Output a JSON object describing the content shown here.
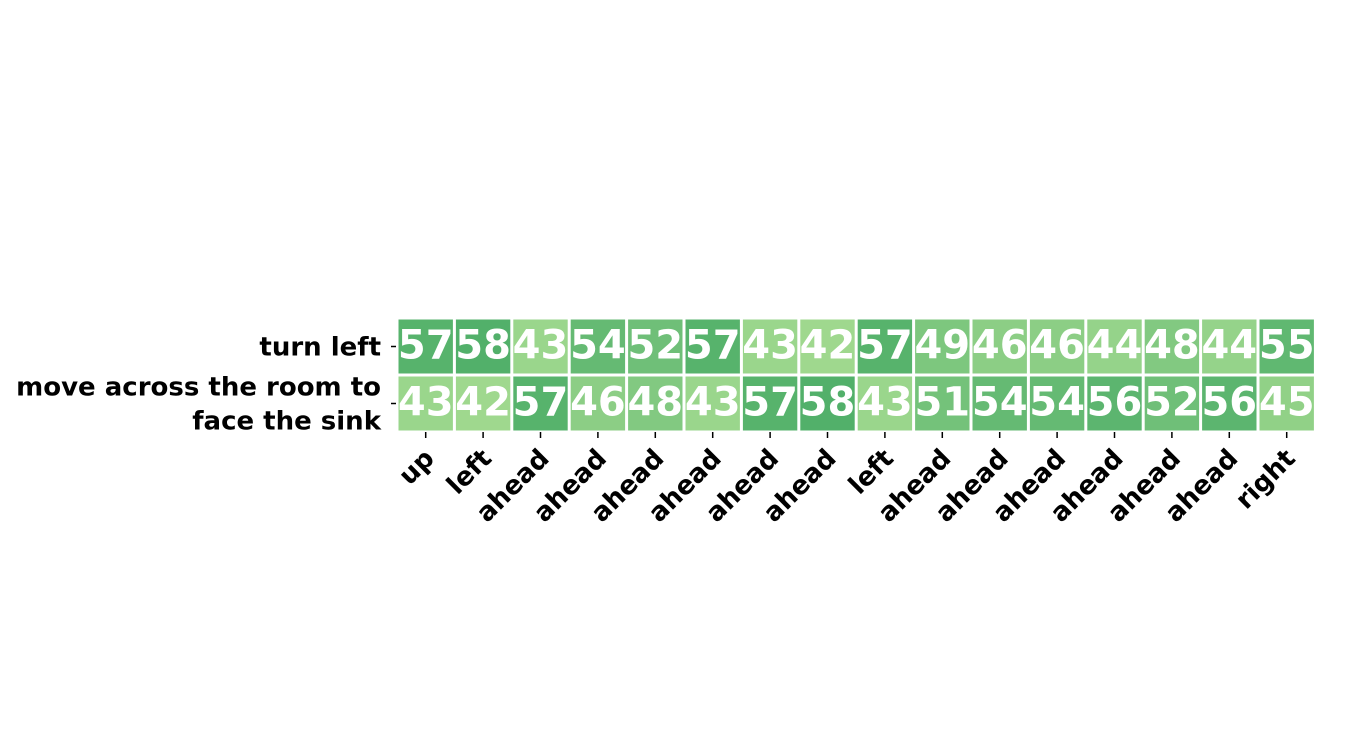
{
  "chart_data": {
    "type": "heatmap",
    "rows": [
      [
        "turn left"
      ],
      [
        "move across the room to",
        "face the sink"
      ]
    ],
    "columns": [
      "up",
      "left",
      "ahead",
      "ahead",
      "ahead",
      "ahead",
      "ahead",
      "ahead",
      "left",
      "ahead",
      "ahead",
      "ahead",
      "ahead",
      "ahead",
      "ahead",
      "right"
    ],
    "values": [
      [
        57,
        58,
        43,
        54,
        52,
        57,
        43,
        42,
        57,
        49,
        46,
        46,
        44,
        48,
        44,
        55
      ],
      [
        43,
        42,
        57,
        46,
        48,
        43,
        57,
        58,
        43,
        51,
        54,
        54,
        56,
        52,
        56,
        45
      ]
    ],
    "value_range": [
      42,
      58
    ],
    "colormap": {
      "low": "#9fd88e",
      "high": "#52b06a"
    },
    "text_color": "#ffffff",
    "grid": false
  }
}
